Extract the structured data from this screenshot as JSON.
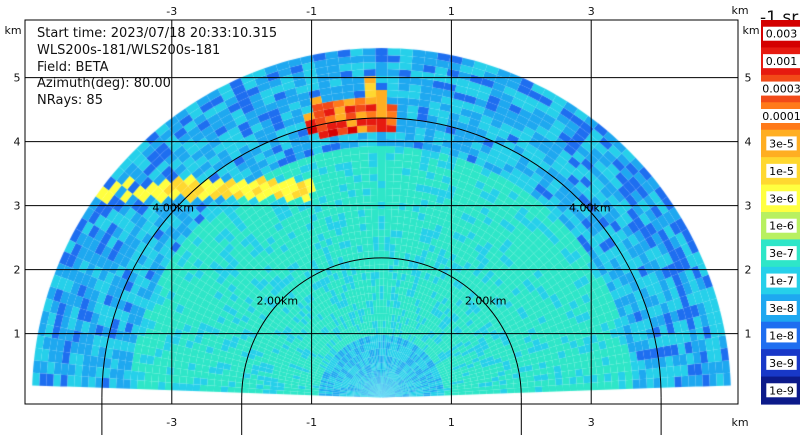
{
  "info": {
    "start_time": "Start time: 2023/07/18 20:33:10.315",
    "instrument": "WLS200s-181/WLS200s-181",
    "field": "Field: BETA",
    "azimuth": "Azimuth(deg): 80.00",
    "nrays": "NRays: 85"
  },
  "chart_data": {
    "type": "heatmap",
    "projection": "RHI range-height scan (polar fan)",
    "xlabel": "km",
    "ylabel": "km",
    "xlim": [
      -5.1,
      5.1
    ],
    "ylim": [
      -0.1,
      5.9
    ],
    "x_ticks": [
      -3,
      -1,
      1,
      3
    ],
    "y_ticks": [
      1,
      2,
      3,
      4,
      5
    ],
    "range_rings": [
      {
        "radius_km": 2,
        "label": "2.00km"
      },
      {
        "radius_km": 4,
        "label": "4.00km"
      }
    ],
    "max_range_km": 5.0,
    "colorbar": {
      "unit": "-1 sr",
      "labels": [
        "0.003",
        "0.001",
        "0.0003",
        "0.0001",
        "3e-5",
        "1e-5",
        "3e-6",
        "1e-6",
        "3e-7",
        "1e-7",
        "3e-8",
        "1e-8",
        "3e-9",
        "1e-9"
      ],
      "colors": [
        "#d40000",
        "#e61a10",
        "#f24a18",
        "#ff7a1a",
        "#ffae22",
        "#ffd830",
        "#ffff40",
        "#b8f060",
        "#2ee6c8",
        "#26d0ea",
        "#1ea8f0",
        "#1e6ef0",
        "#1838c8",
        "#0c1a8a"
      ]
    },
    "features": [
      {
        "description": "aerosol layer",
        "range_km": [
          3.1,
          4.6
        ],
        "height_km": [
          2.9,
          3.1
        ],
        "value_approx": "1e-5"
      },
      {
        "description": "cloud return",
        "x_km": [
          -1.0,
          0.1
        ],
        "height_km": [
          3.8,
          4.2
        ],
        "value_approx": "3e-5 to 0.001"
      }
    ]
  }
}
